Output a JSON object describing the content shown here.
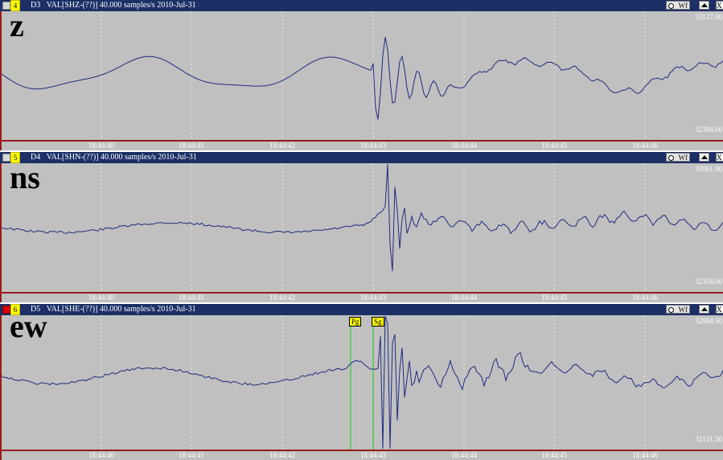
{
  "colors": {
    "titlebar": "#1c2f66",
    "plot_background": "#c0c0c0",
    "trace": "#1f2a80",
    "gridline": "#e8e8e8",
    "pick_line": "#33cc33",
    "pick_label_bg": "#ffff00",
    "frame": "#9a1b1b"
  },
  "time_ticks": [
    "18:44:40",
    "18:44:41",
    "18:44:42",
    "18:44:43",
    "18:44:44",
    "18:44:45",
    "18:44:46"
  ],
  "panels": [
    {
      "channel_number": "4",
      "station_id": "D3",
      "channel_label": "VAL[SHZ-(??)] 40.000 samples/s 2010-Jul-31",
      "component": "z",
      "y_max": "33127.00",
      "y_min": "32394.00",
      "wf_label": "Wf",
      "close_glyph": "X",
      "active": false,
      "picks": []
    },
    {
      "channel_number": "5",
      "station_id": "D4",
      "channel_label": "VAL[SHN-(??)] 40.000 samples/s 2010-Jul-31",
      "component": "ns",
      "y_max": "33091.00",
      "y_min": "32358.00",
      "wf_label": "Wf",
      "close_glyph": "X",
      "active": false,
      "picks": []
    },
    {
      "channel_number": "6",
      "station_id": "D5",
      "channel_label": "VAL[SHE-(??)] 40.000 samples/s 2010-Jul-31",
      "component": "ew",
      "y_max": "32884.50",
      "y_min": "32151.50",
      "wf_label": "Wf",
      "close_glyph": "X",
      "active": true,
      "picks": [
        {
          "label": "Pg",
          "time": "18:44:42.75"
        },
        {
          "label": "Sg",
          "time": "18:44:43.00"
        }
      ]
    }
  ]
}
